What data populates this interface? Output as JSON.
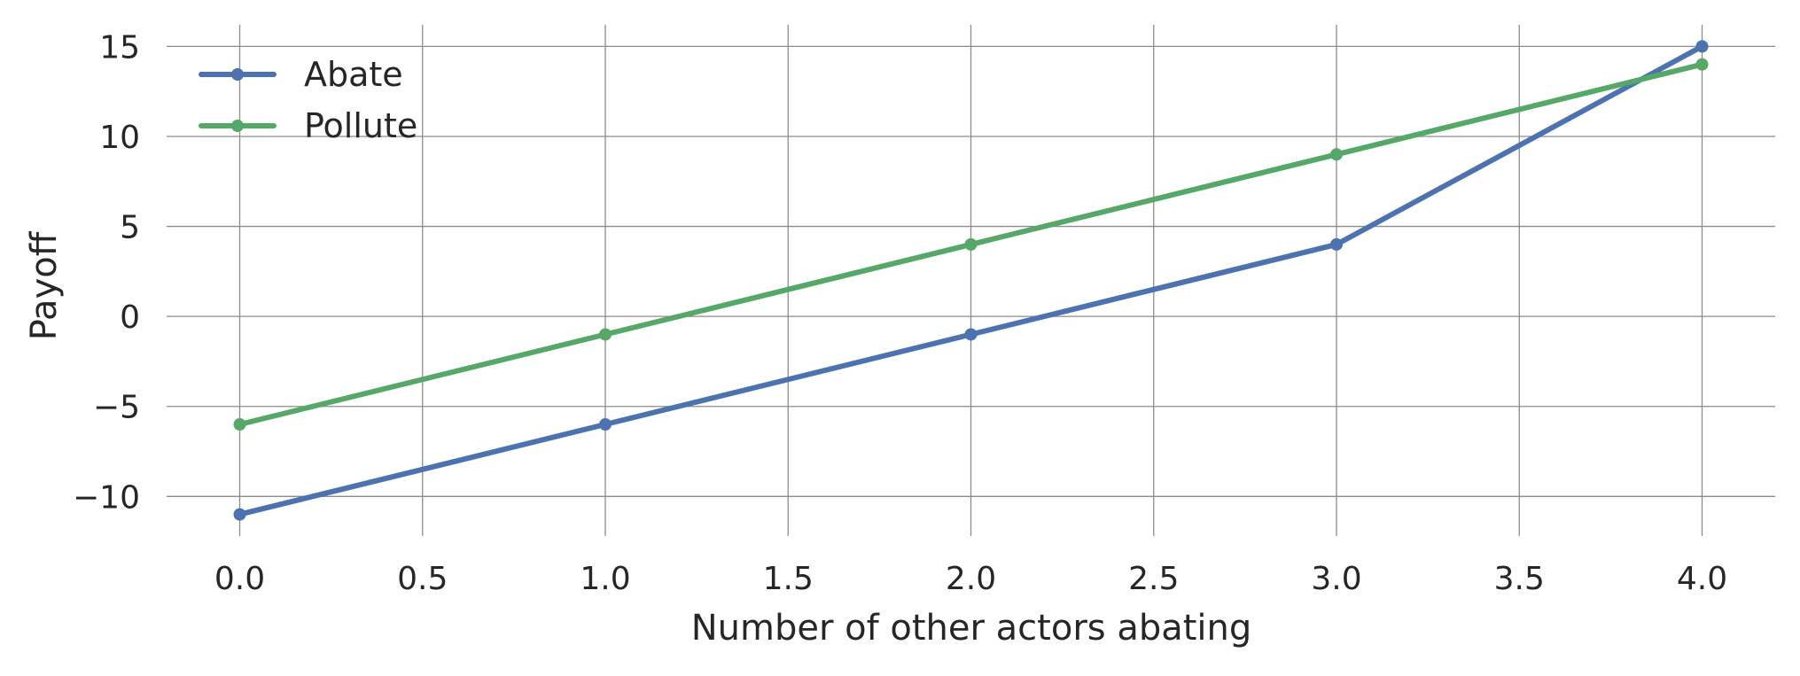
{
  "chart_data": {
    "type": "line",
    "xlabel": "Number of other actors abating",
    "ylabel": "Payoff",
    "xlim": [
      -0.2,
      4.2
    ],
    "ylim": [
      -12.2,
      16.2
    ],
    "xticks": [
      0.0,
      0.5,
      1.0,
      1.5,
      2.0,
      2.5,
      3.0,
      3.5,
      4.0
    ],
    "xtick_labels": [
      "0.0",
      "0.5",
      "1.0",
      "1.5",
      "2.0",
      "2.5",
      "3.0",
      "3.5",
      "4.0"
    ],
    "yticks": [
      -10,
      -5,
      0,
      5,
      10,
      15
    ],
    "ytick_labels": [
      "−10",
      "−5",
      "0",
      "5",
      "10",
      "15"
    ],
    "grid": true,
    "legend_position": "top-left",
    "x": [
      0,
      1,
      2,
      3,
      4
    ],
    "series": [
      {
        "name": "Abate",
        "color": "#4c72b0",
        "values": [
          -11,
          -6,
          -1,
          4,
          15
        ]
      },
      {
        "name": "Pollute",
        "color": "#55a868",
        "values": [
          -6,
          -1,
          4,
          9,
          14
        ]
      }
    ]
  }
}
